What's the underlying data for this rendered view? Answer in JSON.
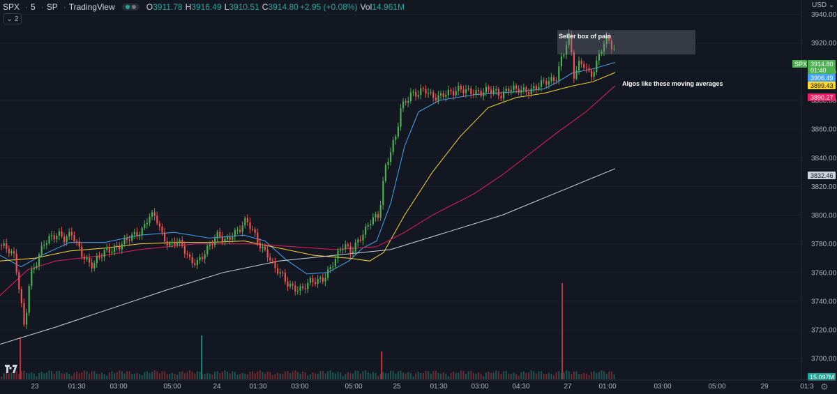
{
  "legend": {
    "symbol": "SPX",
    "interval": "5",
    "exchange": "SP",
    "source": "TradingView",
    "open_label": "O",
    "open": "3911.78",
    "high_label": "H",
    "high": "3916.49",
    "low_label": "L",
    "low": "3910.51",
    "close_label": "C",
    "close": "3914.80",
    "change": "+2.95 (+0.08%)",
    "vol_label": "Vol",
    "vol": "14.961M",
    "collapse_count": "2"
  },
  "currency": "USD",
  "colors": {
    "background": "#131722",
    "up": "#26a69a",
    "down": "#ef5350",
    "up_bright": "#4caf50",
    "ema_fast": "#42a5f5",
    "ema_mid": "#fdd835",
    "ema_slow": "#e91e63",
    "sma_long": "#d1d4dc"
  },
  "chart_data": {
    "type": "candlestick",
    "symbol": "SPX",
    "interval": "5",
    "price_axis": {
      "ylim": [
        3686,
        3950
      ],
      "ticks": [
        3940,
        3920,
        3900,
        3880,
        3860,
        3840,
        3820,
        3800,
        3780,
        3760,
        3740,
        3720,
        3700
      ],
      "tick_labels": [
        "3940.00",
        "3920.00",
        "3900.00",
        "3880.00",
        "3860.00",
        "3840.00",
        "3820.00",
        "3800.00",
        "3780.00",
        "3760.00",
        "3740.00",
        "3720.00",
        "3700.00"
      ]
    },
    "time_axis": {
      "labels": [
        "23",
        "01:30",
        "03:00",
        "05:00",
        "24",
        "01:30",
        "03:00",
        "05:00",
        "25",
        "01:30",
        "03:00",
        "04:30",
        "27",
        "01:00",
        "03:00",
        "05:00",
        "29",
        "01:3"
      ]
    },
    "price_path": [
      [
        0,
        3779
      ],
      [
        10,
        3775
      ],
      [
        20,
        3770
      ],
      [
        28,
        3745
      ],
      [
        34,
        3722
      ],
      [
        42,
        3758
      ],
      [
        52,
        3766
      ],
      [
        62,
        3780
      ],
      [
        72,
        3786
      ],
      [
        82,
        3788
      ],
      [
        92,
        3782
      ],
      [
        102,
        3786
      ],
      [
        112,
        3778
      ],
      [
        122,
        3770
      ],
      [
        132,
        3764
      ],
      [
        142,
        3770
      ],
      [
        152,
        3776
      ],
      [
        162,
        3778
      ],
      [
        172,
        3779
      ],
      [
        182,
        3782
      ],
      [
        192,
        3786
      ],
      [
        202,
        3790
      ],
      [
        212,
        3800
      ],
      [
        222,
        3798
      ],
      [
        232,
        3784
      ],
      [
        242,
        3780
      ],
      [
        252,
        3784
      ],
      [
        262,
        3776
      ],
      [
        272,
        3766
      ],
      [
        282,
        3768
      ],
      [
        292,
        3775
      ],
      [
        302,
        3780
      ],
      [
        312,
        3785
      ],
      [
        322,
        3782
      ],
      [
        332,
        3788
      ],
      [
        342,
        3790
      ],
      [
        352,
        3795
      ],
      [
        362,
        3788
      ],
      [
        372,
        3780
      ],
      [
        382,
        3774
      ],
      [
        392,
        3762
      ],
      [
        402,
        3758
      ],
      [
        412,
        3753
      ],
      [
        422,
        3750
      ],
      [
        432,
        3747
      ],
      [
        442,
        3752
      ],
      [
        452,
        3755
      ],
      [
        462,
        3757
      ],
      [
        472,
        3762
      ],
      [
        482,
        3770
      ],
      [
        492,
        3780
      ],
      [
        502,
        3776
      ],
      [
        512,
        3782
      ],
      [
        522,
        3787
      ],
      [
        532,
        3797
      ],
      [
        542,
        3801
      ],
      [
        548,
        3823
      ],
      [
        552,
        3835
      ],
      [
        562,
        3848
      ],
      [
        568,
        3855
      ],
      [
        572,
        3872
      ],
      [
        578,
        3878
      ],
      [
        588,
        3886
      ],
      [
        598,
        3885
      ],
      [
        608,
        3886
      ],
      [
        618,
        3882
      ],
      [
        628,
        3884
      ],
      [
        638,
        3886
      ],
      [
        648,
        3884
      ],
      [
        658,
        3887
      ],
      [
        668,
        3888
      ],
      [
        678,
        3887
      ],
      [
        688,
        3884
      ],
      [
        698,
        3886
      ],
      [
        708,
        3887
      ],
      [
        718,
        3885
      ],
      [
        728,
        3888
      ],
      [
        738,
        3886
      ],
      [
        748,
        3887
      ],
      [
        758,
        3888
      ],
      [
        768,
        3890
      ],
      [
        778,
        3891
      ],
      [
        788,
        3893
      ],
      [
        796,
        3896
      ],
      [
        802,
        3908
      ],
      [
        808,
        3915
      ],
      [
        814,
        3926
      ],
      [
        818,
        3912
      ],
      [
        822,
        3895
      ],
      [
        828,
        3904
      ],
      [
        836,
        3906
      ],
      [
        846,
        3898
      ],
      [
        856,
        3908
      ],
      [
        864,
        3918
      ],
      [
        870,
        3922
      ],
      [
        876,
        3918
      ],
      [
        882,
        3915
      ]
    ],
    "volume_spikes": [
      [
        28,
        "15.0M"
      ],
      [
        288,
        "13.5M"
      ],
      [
        546,
        "11.0M"
      ],
      [
        805,
        "35.0M"
      ]
    ],
    "moving_averages": [
      {
        "color_key": "ema_fast",
        "last_value": "3906.49",
        "path": [
          [
            0,
            3772
          ],
          [
            30,
            3764
          ],
          [
            60,
            3772
          ],
          [
            100,
            3781
          ],
          [
            150,
            3781
          ],
          [
            200,
            3786
          ],
          [
            250,
            3788
          ],
          [
            300,
            3784
          ],
          [
            350,
            3786
          ],
          [
            380,
            3782
          ],
          [
            410,
            3769
          ],
          [
            440,
            3759
          ],
          [
            470,
            3760
          ],
          [
            500,
            3768
          ],
          [
            520,
            3777
          ],
          [
            540,
            3782
          ],
          [
            560,
            3808
          ],
          [
            580,
            3848
          ],
          [
            600,
            3872
          ],
          [
            630,
            3880
          ],
          [
            680,
            3884
          ],
          [
            740,
            3886
          ],
          [
            780,
            3888
          ],
          [
            800,
            3893
          ],
          [
            820,
            3899
          ],
          [
            850,
            3902
          ],
          [
            882,
            3906.49
          ]
        ]
      },
      {
        "color_key": "ema_mid",
        "last_value": "3899.43",
        "path": [
          [
            0,
            3768
          ],
          [
            50,
            3770
          ],
          [
            100,
            3775
          ],
          [
            150,
            3777
          ],
          [
            200,
            3780
          ],
          [
            250,
            3781
          ],
          [
            300,
            3781
          ],
          [
            350,
            3782
          ],
          [
            400,
            3777
          ],
          [
            450,
            3772
          ],
          [
            500,
            3770
          ],
          [
            530,
            3768
          ],
          [
            550,
            3774
          ],
          [
            580,
            3800
          ],
          [
            620,
            3830
          ],
          [
            660,
            3855
          ],
          [
            700,
            3875
          ],
          [
            740,
            3882
          ],
          [
            780,
            3885
          ],
          [
            820,
            3890
          ],
          [
            850,
            3893
          ],
          [
            882,
            3899.43
          ]
        ]
      },
      {
        "color_key": "ema_slow",
        "last_value": "3890.27",
        "path": [
          [
            0,
            3744
          ],
          [
            40,
            3762
          ],
          [
            80,
            3768
          ],
          [
            150,
            3772
          ],
          [
            200,
            3776
          ],
          [
            280,
            3780
          ],
          [
            360,
            3780
          ],
          [
            420,
            3778
          ],
          [
            480,
            3776
          ],
          [
            540,
            3778
          ],
          [
            580,
            3788
          ],
          [
            620,
            3800
          ],
          [
            680,
            3815
          ],
          [
            720,
            3828
          ],
          [
            760,
            3843
          ],
          [
            800,
            3858
          ],
          [
            840,
            3872
          ],
          [
            882,
            3890.27
          ]
        ]
      },
      {
        "color_key": "sma_long",
        "last_value": "3832.46",
        "path": [
          [
            0,
            3710
          ],
          [
            80,
            3722
          ],
          [
            160,
            3735
          ],
          [
            240,
            3748
          ],
          [
            320,
            3760
          ],
          [
            400,
            3768
          ],
          [
            480,
            3772
          ],
          [
            560,
            3776
          ],
          [
            640,
            3788
          ],
          [
            720,
            3800
          ],
          [
            800,
            3816
          ],
          [
            882,
            3832.46
          ]
        ]
      }
    ],
    "price_labels": [
      {
        "text": "3914.80",
        "color_key": "up_bright",
        "tag": "SPX",
        "countdown": "01:40"
      },
      {
        "text": "3906.49",
        "color_key": "ema_fast"
      },
      {
        "text": "3899.43",
        "color_key": "ema_mid"
      },
      {
        "text": "3890.27",
        "color_key": "ema_slow"
      },
      {
        "text": "3832.46",
        "color_key": "sma_long"
      }
    ],
    "volume_label": "15.097M",
    "annotations": [
      {
        "text": "Seller box of pain",
        "box_price": [
          3912,
          3929
        ]
      },
      {
        "text": "Algos like these moving averages",
        "price": 3899
      }
    ]
  }
}
